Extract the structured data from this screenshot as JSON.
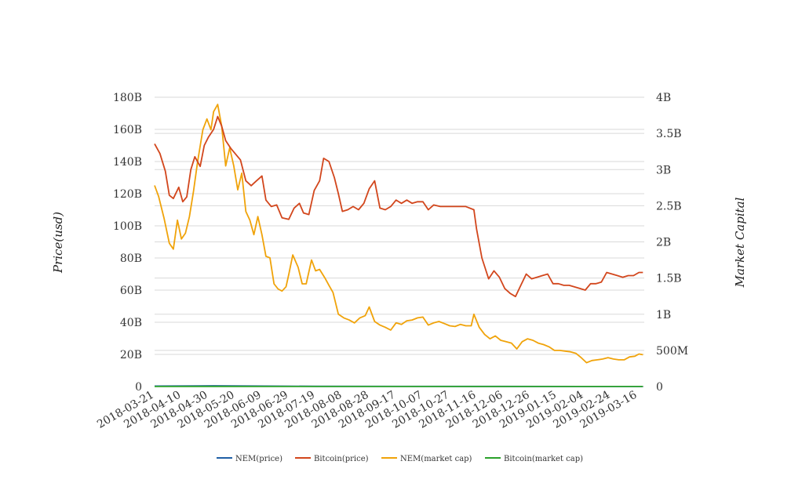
{
  "chart_data": {
    "type": "line",
    "title": "",
    "y_left_label": "Price(usd)",
    "y_right_label": "Market Capital",
    "x_ticks": [
      "2018-03-21",
      "2018-04-10",
      "2018-04-30",
      "2018-05-20",
      "2018-06-09",
      "2018-06-29",
      "2018-07-19",
      "2018-08-08",
      "2018-08-28",
      "2018-09-17",
      "2018-10-07",
      "2018-10-27",
      "2018-11-16",
      "2018-12-06",
      "2018-12-26",
      "2019-01-15",
      "2019-02-04",
      "2019-02-24",
      "2019-03-16"
    ],
    "y_left_ticks": [
      "0",
      "20B",
      "40B",
      "60B",
      "80B",
      "100B",
      "120B",
      "140B",
      "160B",
      "180B"
    ],
    "y_right_ticks": [
      "0",
      "500M",
      "1B",
      "1.5B",
      "2B",
      "2.5B",
      "3B",
      "3.5B",
      "4B"
    ],
    "y_left_range": [
      0,
      180000000000
    ],
    "y_right_range": [
      0,
      4000000000
    ],
    "grid": true,
    "legend_position": "bottom",
    "series": [
      {
        "name": "NEM(price)",
        "axis": "left",
        "color": "#1f5fa6",
        "points": [
          [
            "2018-03-21",
            0.29
          ],
          [
            "2018-05-04",
            0.48
          ],
          [
            "2018-07-19",
            0.17
          ],
          [
            "2018-11-16",
            0.1
          ],
          [
            "2019-02-04",
            0.04
          ],
          [
            "2019-03-20",
            0.05
          ]
        ]
      },
      {
        "name": "Bitcoin(price)",
        "axis": "left",
        "color": "#d2461c",
        "points": [
          [
            "2018-03-21",
            151
          ],
          [
            "2018-03-25",
            145
          ],
          [
            "2018-03-29",
            134
          ],
          [
            "2018-04-01",
            119
          ],
          [
            "2018-04-04",
            117
          ],
          [
            "2018-04-08",
            124
          ],
          [
            "2018-04-11",
            115
          ],
          [
            "2018-04-14",
            118
          ],
          [
            "2018-04-17",
            135
          ],
          [
            "2018-04-20",
            143
          ],
          [
            "2018-04-24",
            137
          ],
          [
            "2018-04-27",
            150
          ],
          [
            "2018-04-30",
            155
          ],
          [
            "2018-05-04",
            160
          ],
          [
            "2018-05-07",
            168
          ],
          [
            "2018-05-10",
            162
          ],
          [
            "2018-05-13",
            153
          ],
          [
            "2018-05-17",
            148
          ],
          [
            "2018-05-20",
            145
          ],
          [
            "2018-05-24",
            141
          ],
          [
            "2018-05-28",
            128
          ],
          [
            "2018-06-01",
            125
          ],
          [
            "2018-06-05",
            128
          ],
          [
            "2018-06-09",
            131
          ],
          [
            "2018-06-12",
            116
          ],
          [
            "2018-06-16",
            112
          ],
          [
            "2018-06-20",
            113
          ],
          [
            "2018-06-24",
            105
          ],
          [
            "2018-06-29",
            104
          ],
          [
            "2018-07-03",
            111
          ],
          [
            "2018-07-07",
            114
          ],
          [
            "2018-07-10",
            108
          ],
          [
            "2018-07-14",
            107
          ],
          [
            "2018-07-18",
            122
          ],
          [
            "2018-07-22",
            128
          ],
          [
            "2018-07-25",
            142
          ],
          [
            "2018-07-29",
            140
          ],
          [
            "2018-08-02",
            130
          ],
          [
            "2018-08-05",
            120
          ],
          [
            "2018-08-08",
            109
          ],
          [
            "2018-08-12",
            110
          ],
          [
            "2018-08-16",
            112
          ],
          [
            "2018-08-20",
            110
          ],
          [
            "2018-08-24",
            114
          ],
          [
            "2018-08-28",
            123
          ],
          [
            "2018-09-01",
            128
          ],
          [
            "2018-09-05",
            111
          ],
          [
            "2018-09-09",
            110
          ],
          [
            "2018-09-13",
            112
          ],
          [
            "2018-09-17",
            116
          ],
          [
            "2018-09-21",
            114
          ],
          [
            "2018-09-25",
            116
          ],
          [
            "2018-09-29",
            114
          ],
          [
            "2018-10-03",
            115
          ],
          [
            "2018-10-07",
            115
          ],
          [
            "2018-10-11",
            110
          ],
          [
            "2018-10-15",
            113
          ],
          [
            "2018-10-20",
            112
          ],
          [
            "2018-10-27",
            112
          ],
          [
            "2018-11-02",
            112
          ],
          [
            "2018-11-08",
            112
          ],
          [
            "2018-11-14",
            110
          ],
          [
            "2018-11-16",
            98
          ],
          [
            "2018-11-20",
            80
          ],
          [
            "2018-11-25",
            67
          ],
          [
            "2018-11-29",
            72
          ],
          [
            "2018-12-03",
            68
          ],
          [
            "2018-12-07",
            61
          ],
          [
            "2018-12-11",
            58
          ],
          [
            "2018-12-15",
            56
          ],
          [
            "2018-12-19",
            63
          ],
          [
            "2018-12-23",
            70
          ],
          [
            "2018-12-27",
            67
          ],
          [
            "2018-12-31",
            68
          ],
          [
            "2019-01-04",
            69
          ],
          [
            "2019-01-08",
            70
          ],
          [
            "2019-01-12",
            64
          ],
          [
            "2019-01-16",
            64
          ],
          [
            "2019-01-20",
            63
          ],
          [
            "2019-01-24",
            63
          ],
          [
            "2019-01-28",
            62
          ],
          [
            "2019-02-01",
            61
          ],
          [
            "2019-02-05",
            60
          ],
          [
            "2019-02-09",
            64
          ],
          [
            "2019-02-13",
            64
          ],
          [
            "2019-02-17",
            65
          ],
          [
            "2019-02-21",
            71
          ],
          [
            "2019-02-25",
            70
          ],
          [
            "2019-03-01",
            69
          ],
          [
            "2019-03-05",
            68
          ],
          [
            "2019-03-09",
            69
          ],
          [
            "2019-03-13",
            69
          ],
          [
            "2019-03-17",
            71
          ],
          [
            "2019-03-20",
            71
          ]
        ]
      },
      {
        "name": "NEM(market cap)",
        "axis": "right",
        "color": "#f0a30a",
        "points": [
          [
            "2018-03-21",
            2.78
          ],
          [
            "2018-03-24",
            2.63
          ],
          [
            "2018-03-28",
            2.33
          ],
          [
            "2018-04-01",
            1.98
          ],
          [
            "2018-04-04",
            1.9
          ],
          [
            "2018-04-07",
            2.3
          ],
          [
            "2018-04-10",
            2.04
          ],
          [
            "2018-04-13",
            2.12
          ],
          [
            "2018-04-16",
            2.35
          ],
          [
            "2018-04-19",
            2.7
          ],
          [
            "2018-04-22",
            3.1
          ],
          [
            "2018-04-26",
            3.55
          ],
          [
            "2018-04-29",
            3.7
          ],
          [
            "2018-05-02",
            3.55
          ],
          [
            "2018-05-04",
            3.8
          ],
          [
            "2018-05-07",
            3.9
          ],
          [
            "2018-05-10",
            3.6
          ],
          [
            "2018-05-13",
            3.05
          ],
          [
            "2018-05-16",
            3.3
          ],
          [
            "2018-05-19",
            3.05
          ],
          [
            "2018-05-22",
            2.72
          ],
          [
            "2018-05-25",
            2.95
          ],
          [
            "2018-05-28",
            2.42
          ],
          [
            "2018-05-31",
            2.3
          ],
          [
            "2018-06-03",
            2.1
          ],
          [
            "2018-06-06",
            2.35
          ],
          [
            "2018-06-09",
            2.1
          ],
          [
            "2018-06-12",
            1.8
          ],
          [
            "2018-06-15",
            1.78
          ],
          [
            "2018-06-18",
            1.42
          ],
          [
            "2018-06-21",
            1.35
          ],
          [
            "2018-06-24",
            1.32
          ],
          [
            "2018-06-27",
            1.38
          ],
          [
            "2018-06-29",
            1.55
          ],
          [
            "2018-07-02",
            1.82
          ],
          [
            "2018-07-06",
            1.65
          ],
          [
            "2018-07-09",
            1.42
          ],
          [
            "2018-07-12",
            1.42
          ],
          [
            "2018-07-16",
            1.75
          ],
          [
            "2018-07-19",
            1.6
          ],
          [
            "2018-07-22",
            1.62
          ],
          [
            "2018-07-26",
            1.5
          ],
          [
            "2018-07-29",
            1.4
          ],
          [
            "2018-08-01",
            1.3
          ],
          [
            "2018-08-05",
            1.0
          ],
          [
            "2018-08-09",
            0.95
          ],
          [
            "2018-08-13",
            0.92
          ],
          [
            "2018-08-17",
            0.88
          ],
          [
            "2018-08-21",
            0.95
          ],
          [
            "2018-08-25",
            0.98
          ],
          [
            "2018-08-28",
            1.1
          ],
          [
            "2018-09-01",
            0.9
          ],
          [
            "2018-09-05",
            0.85
          ],
          [
            "2018-09-09",
            0.82
          ],
          [
            "2018-09-13",
            0.78
          ],
          [
            "2018-09-17",
            0.88
          ],
          [
            "2018-09-21",
            0.86
          ],
          [
            "2018-09-25",
            0.91
          ],
          [
            "2018-09-29",
            0.92
          ],
          [
            "2018-10-03",
            0.95
          ],
          [
            "2018-10-07",
            0.96
          ],
          [
            "2018-10-11",
            0.85
          ],
          [
            "2018-10-15",
            0.88
          ],
          [
            "2018-10-19",
            0.9
          ],
          [
            "2018-10-23",
            0.87
          ],
          [
            "2018-10-27",
            0.84
          ],
          [
            "2018-10-31",
            0.83
          ],
          [
            "2018-11-04",
            0.86
          ],
          [
            "2018-11-08",
            0.84
          ],
          [
            "2018-11-12",
            0.84
          ],
          [
            "2018-11-14",
            1.0
          ],
          [
            "2018-11-18",
            0.82
          ],
          [
            "2018-11-22",
            0.72
          ],
          [
            "2018-11-26",
            0.66
          ],
          [
            "2018-11-30",
            0.7
          ],
          [
            "2018-12-04",
            0.64
          ],
          [
            "2018-12-08",
            0.62
          ],
          [
            "2018-12-12",
            0.6
          ],
          [
            "2018-12-16",
            0.52
          ],
          [
            "2018-12-20",
            0.62
          ],
          [
            "2018-12-24",
            0.66
          ],
          [
            "2018-12-28",
            0.64
          ],
          [
            "2019-01-01",
            0.6
          ],
          [
            "2019-01-05",
            0.58
          ],
          [
            "2019-01-09",
            0.55
          ],
          [
            "2019-01-13",
            0.5
          ],
          [
            "2019-01-17",
            0.5
          ],
          [
            "2019-01-21",
            0.49
          ],
          [
            "2019-01-25",
            0.48
          ],
          [
            "2019-01-29",
            0.46
          ],
          [
            "2019-02-02",
            0.4
          ],
          [
            "2019-02-06",
            0.33
          ],
          [
            "2019-02-10",
            0.36
          ],
          [
            "2019-02-14",
            0.37
          ],
          [
            "2019-02-18",
            0.38
          ],
          [
            "2019-02-22",
            0.4
          ],
          [
            "2019-02-26",
            0.38
          ],
          [
            "2019-03-02",
            0.37
          ],
          [
            "2019-03-06",
            0.37
          ],
          [
            "2019-03-10",
            0.41
          ],
          [
            "2019-03-14",
            0.42
          ],
          [
            "2019-03-17",
            0.45
          ],
          [
            "2019-03-20",
            0.44
          ]
        ]
      },
      {
        "name": "Bitcoin(market cap)",
        "axis": "right",
        "color": "#2aa12a",
        "points": [
          [
            "2018-03-21",
            0.0016
          ],
          [
            "2018-05-04",
            0.0017
          ],
          [
            "2018-08-08",
            0.0012
          ],
          [
            "2018-11-16",
            0.001
          ],
          [
            "2019-02-04",
            0.0006
          ],
          [
            "2019-03-20",
            0.0007
          ]
        ]
      }
    ]
  }
}
